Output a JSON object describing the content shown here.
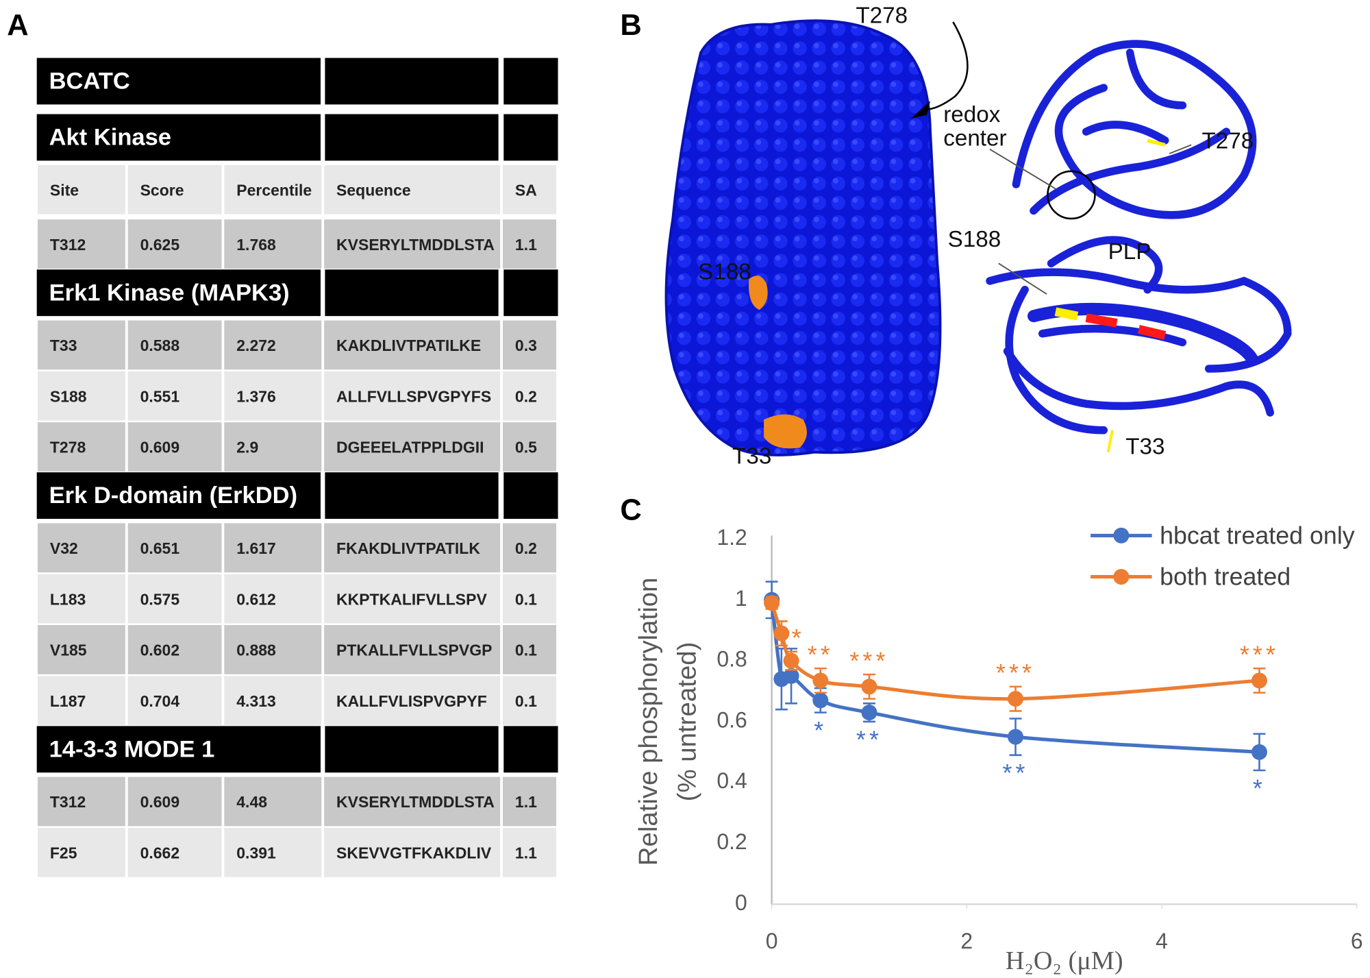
{
  "panels": [
    "A",
    "B",
    "C"
  ],
  "table": {
    "title": "BCATC",
    "sections": [
      {
        "title": "Akt Kinase",
        "header": [
          "Site",
          "Score",
          "Percentile",
          "Sequence",
          "SA"
        ],
        "rows": [
          [
            "T312",
            "0.625",
            "1.768",
            "KVSERYLTMDDLSTA",
            "1.1"
          ]
        ]
      },
      {
        "title": "Erk1 Kinase (MAPK3)",
        "rows": [
          [
            "T33",
            "0.588",
            "2.272",
            "KAKDLIVTPATILKE",
            "0.3"
          ],
          [
            "S188",
            "0.551",
            "1.376",
            "ALLFVLLSPVGPYFS",
            "0.2"
          ],
          [
            "T278",
            "0.609",
            "2.9",
            "DGEEELATPPLDGII",
            "0.5"
          ]
        ]
      },
      {
        "title": "Erk D-domain (ErkDD)",
        "rows": [
          [
            "V32",
            "0.651",
            "1.617",
            "FKAKDLIVTPATILK",
            "0.2"
          ],
          [
            "L183",
            "0.575",
            "0.612",
            "KKPTKALIFVLLSPV",
            "0.1"
          ],
          [
            "V185",
            "0.602",
            "0.888",
            "PTKALLFVLLSPVGP",
            "0.1"
          ],
          [
            "L187",
            "0.704",
            "4.313",
            "KALLFVLISPVGPYF",
            "0.1"
          ]
        ]
      },
      {
        "title": "14-3-3 MODE 1",
        "rows": [
          [
            "T312",
            "0.609",
            "4.48",
            "KVSERYLTMDDLSTA",
            "1.1"
          ],
          [
            "F25",
            "0.662",
            "0.391",
            "SKEVVGTFKAKDLIV",
            "1.1"
          ]
        ]
      }
    ]
  },
  "structure": {
    "labels": [
      "T278",
      "S188",
      "T33",
      "redox",
      "center",
      "T278",
      "S188",
      "PLP",
      "T33"
    ]
  },
  "chart_data": {
    "type": "line",
    "xlabel": "H₂O₂ (μM)",
    "ylabel": [
      "Relative phosphorylation",
      "(% untreated)"
    ],
    "x": [
      0,
      0.1,
      0.2,
      0.5,
      1,
      2.5,
      5
    ],
    "series": [
      {
        "name": "hbcat treated only",
        "color": "#4472c4",
        "values": [
          1.0,
          0.74,
          0.75,
          0.67,
          0.63,
          0.55,
          0.5
        ],
        "errors": [
          0.06,
          0.1,
          0.09,
          0.04,
          0.03,
          0.06,
          0.06
        ],
        "annotations": [
          null,
          null,
          null,
          "*",
          "**",
          "**",
          "*"
        ]
      },
      {
        "name": "both treated",
        "color": "#ed7d31",
        "values": [
          0.99,
          0.89,
          0.8,
          0.735,
          0.715,
          0.675,
          0.735
        ],
        "errors": [
          0.02,
          0.04,
          0.03,
          0.04,
          0.04,
          0.04,
          0.04
        ],
        "annotations": [
          null,
          null,
          "*",
          "**",
          "***",
          "***",
          "***"
        ]
      }
    ],
    "xlim": [
      0,
      6
    ],
    "xticks": [
      0,
      2,
      4,
      6
    ],
    "ylim": [
      0,
      1.2
    ],
    "yticks": [
      0,
      0.2,
      0.4,
      0.6,
      0.8,
      1,
      1.2
    ],
    "grid": false,
    "legend": "top-right"
  }
}
